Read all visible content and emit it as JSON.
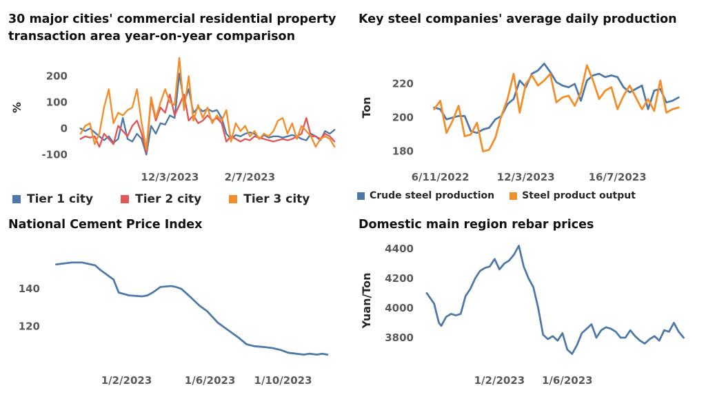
{
  "colors": {
    "blue": "#4e79a7",
    "red": "#e15759",
    "orange": "#f28e2b",
    "tick": "#595959"
  },
  "chart_data": [
    {
      "type": "line",
      "title": "30 major cities' commercial residential property transaction area year-on-year comparison",
      "title_lines": [
        "30 major cities' commercial residential property",
        "transaction area year-on-year comparison"
      ],
      "ylabel": "%",
      "ylim": [
        -120,
        280
      ],
      "yticks": [
        -100,
        0,
        100,
        200
      ],
      "ytick_labels": [
        "-100",
        "0",
        "100",
        "200"
      ],
      "x": [
        0,
        1,
        2,
        3,
        4,
        5,
        6,
        7,
        8,
        9,
        10,
        11,
        12,
        13,
        14,
        15,
        16,
        17,
        18,
        19,
        20,
        21,
        22,
        23,
        24,
        25,
        26,
        27,
        28,
        29,
        30,
        31,
        32,
        33,
        34,
        35,
        36,
        37,
        38,
        39,
        40,
        41,
        42,
        43,
        44,
        45,
        46,
        47,
        48,
        49,
        50,
        51,
        52,
        53,
        54
      ],
      "xlim": [
        -1,
        55
      ],
      "xticks": [
        19,
        36
      ],
      "xtick_labels": [
        "12/3/2023",
        "2/7/2023"
      ],
      "legend": "bottom",
      "series": [
        {
          "name": "Tier 1 city",
          "color": "#4e79a7",
          "values": [
            0,
            -10,
            0,
            -15,
            -30,
            -45,
            -30,
            -55,
            -40,
            40,
            -40,
            -50,
            -20,
            -40,
            -100,
            10,
            -20,
            20,
            15,
            50,
            40,
            210,
            100,
            150,
            60,
            80,
            65,
            75,
            65,
            70,
            40,
            -20,
            -40,
            -25,
            -30,
            -20,
            -15,
            -20,
            -40,
            -25,
            -35,
            -30,
            -30,
            -35,
            -30,
            -25,
            -30,
            -40,
            -45,
            -20,
            -30,
            -45,
            -10,
            -20,
            -5
          ]
        },
        {
          "name": "Tier 2 city",
          "color": "#e15759",
          "values": [
            -40,
            -30,
            -35,
            -30,
            -70,
            -20,
            -40,
            -60,
            10,
            -10,
            -30,
            10,
            30,
            -20,
            -90,
            110,
            30,
            80,
            60,
            130,
            50,
            90,
            130,
            30,
            50,
            20,
            30,
            50,
            30,
            40,
            20,
            -50,
            -30,
            -40,
            -50,
            -40,
            -45,
            -30,
            -35,
            -40,
            -45,
            -50,
            -45,
            -40,
            -45,
            -40,
            -30,
            -20,
            40,
            -30,
            -30,
            -40,
            -20,
            -30,
            -50
          ]
        },
        {
          "name": "Tier 3 city",
          "color": "#f28e2b",
          "values": [
            -20,
            10,
            20,
            -60,
            -20,
            80,
            150,
            20,
            60,
            50,
            70,
            80,
            150,
            20,
            -80,
            120,
            40,
            100,
            150,
            100,
            90,
            270,
            70,
            200,
            30,
            90,
            40,
            80,
            20,
            50,
            30,
            70,
            -50,
            20,
            -10,
            10,
            -30,
            -10,
            -40,
            -20,
            -30,
            -10,
            30,
            40,
            -20,
            20,
            -40,
            10,
            -10,
            -30,
            -70,
            -40,
            -30,
            -40,
            -70
          ]
        }
      ]
    },
    {
      "type": "line",
      "title": "Key steel companies' average daily production",
      "ylabel": "Ton",
      "ylim": [
        175,
        237
      ],
      "yticks": [
        180,
        200,
        220
      ],
      "ytick_labels": [
        "180",
        "200",
        "220"
      ],
      "x": [
        0,
        1,
        2,
        3,
        4,
        5,
        6,
        7,
        8,
        9,
        10,
        11,
        12,
        13,
        14,
        15,
        16,
        17,
        18,
        19,
        20,
        21,
        22,
        23,
        24,
        25,
        26,
        27,
        28,
        29,
        30,
        31,
        32,
        33,
        34,
        35,
        36,
        37,
        38,
        39,
        40
      ],
      "xlim": [
        -2,
        42
      ],
      "xticks": [
        1,
        15,
        30
      ],
      "xtick_labels": [
        "6/11/2022",
        "12/3/2023",
        "16/7/2023"
      ],
      "legend": "bottom",
      "series": [
        {
          "name": "Crude steel production",
          "color": "#4e79a7",
          "values": [
            206,
            205,
            199,
            200,
            201,
            201,
            192,
            191,
            193,
            194,
            199,
            201,
            208,
            211,
            222,
            218,
            226,
            228,
            232,
            227,
            221,
            219,
            218,
            220,
            210,
            222,
            225,
            226,
            224,
            225,
            224,
            218,
            215,
            217,
            219,
            205,
            216,
            217,
            209,
            210,
            212
          ]
        },
        {
          "name": "Steel product output",
          "color": "#f28e2b",
          "values": [
            205,
            210,
            191,
            198,
            207,
            189,
            190,
            197,
            180,
            181,
            188,
            201,
            211,
            226,
            203,
            220,
            225,
            219,
            222,
            226,
            209,
            212,
            213,
            207,
            215,
            231,
            222,
            211,
            216,
            218,
            205,
            213,
            219,
            212,
            205,
            211,
            204,
            222,
            203,
            205,
            206
          ]
        }
      ]
    },
    {
      "type": "line",
      "title": "National Cement Price Index",
      "ylim": [
        103,
        158
      ],
      "yticks": [
        120,
        140
      ],
      "ytick_labels": [
        "120",
        "140"
      ],
      "x": [
        0,
        60,
        100,
        150,
        170,
        220,
        240,
        280,
        330,
        350,
        370,
        400,
        440,
        460,
        480,
        520,
        550,
        580,
        620,
        660,
        700,
        730,
        760,
        800,
        830,
        860,
        890,
        920,
        950,
        970,
        1000,
        1020,
        1040
      ],
      "xlim": [
        -30,
        1080
      ],
      "xticks": [
        270,
        590,
        870
      ],
      "xtick_labels": [
        "1/2/2023",
        "1/6/2023",
        "1/10/2023"
      ],
      "series": [
        {
          "name": "",
          "color": "#4e79a7",
          "values": [
            153,
            154,
            154,
            152.5,
            150,
            145,
            138,
            136.5,
            136,
            136.5,
            138,
            141,
            141.5,
            141,
            140,
            135,
            131,
            128,
            122,
            118,
            114,
            110.5,
            109.5,
            109,
            108.5,
            107.5,
            106,
            105.5,
            105,
            105.5,
            105,
            105.5,
            105
          ]
        }
      ]
    },
    {
      "type": "line",
      "title": "Domestic main region rebar prices",
      "ylabel": "Yuan/Ton",
      "ylim": [
        3660,
        4450
      ],
      "yticks": [
        3800,
        4000,
        4200,
        4400
      ],
      "ytick_labels": [
        "3800",
        "4000",
        "4200",
        "4400"
      ],
      "x": [
        0,
        15,
        25,
        30,
        40,
        50,
        60,
        70,
        80,
        90,
        100,
        110,
        120,
        130,
        140,
        150,
        160,
        170,
        180,
        190,
        200,
        210,
        220,
        230,
        240,
        250,
        260,
        270,
        280,
        290,
        300,
        310,
        320,
        330,
        340,
        350,
        360,
        370,
        380,
        390,
        400,
        410,
        420,
        430,
        440,
        450,
        460,
        470,
        480,
        490,
        500,
        510,
        520,
        530
      ],
      "xlim": [
        -10,
        545
      ],
      "xticks": [
        150,
        290
      ],
      "xtick_labels": [
        "1/2/2023",
        "1/6/2023"
      ],
      "series": [
        {
          "name": "",
          "color": "#4e79a7",
          "values": [
            4100,
            4030,
            3900,
            3880,
            3940,
            3960,
            3950,
            3960,
            4080,
            4130,
            4200,
            4250,
            4270,
            4280,
            4330,
            4260,
            4300,
            4320,
            4360,
            4420,
            4280,
            4200,
            4140,
            4000,
            3820,
            3790,
            3810,
            3780,
            3830,
            3720,
            3690,
            3750,
            3830,
            3860,
            3890,
            3800,
            3850,
            3870,
            3860,
            3840,
            3800,
            3800,
            3850,
            3810,
            3780,
            3760,
            3790,
            3810,
            3780,
            3850,
            3840,
            3900,
            3840,
            3800
          ]
        }
      ]
    }
  ]
}
